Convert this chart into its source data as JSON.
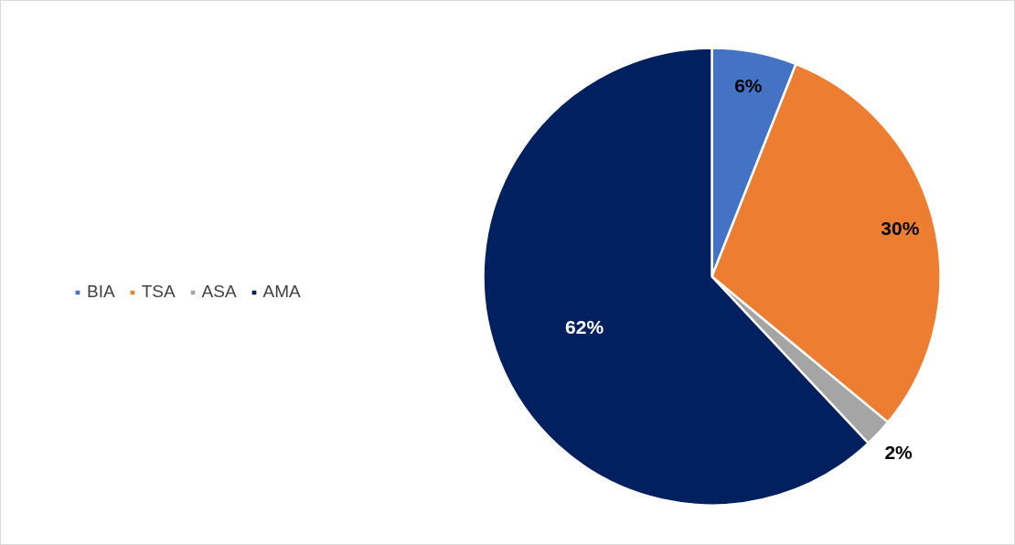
{
  "chart_data": {
    "type": "pie",
    "categories": [
      "BIA",
      "TSA",
      "ASA",
      "AMA"
    ],
    "values": [
      6,
      30,
      2,
      62
    ],
    "colors": [
      "#4472c4",
      "#ed7d31",
      "#a5a5a5",
      "#002060"
    ],
    "value_labels": [
      "6%",
      "30%",
      "2%",
      "62%"
    ],
    "legend": "left"
  }
}
